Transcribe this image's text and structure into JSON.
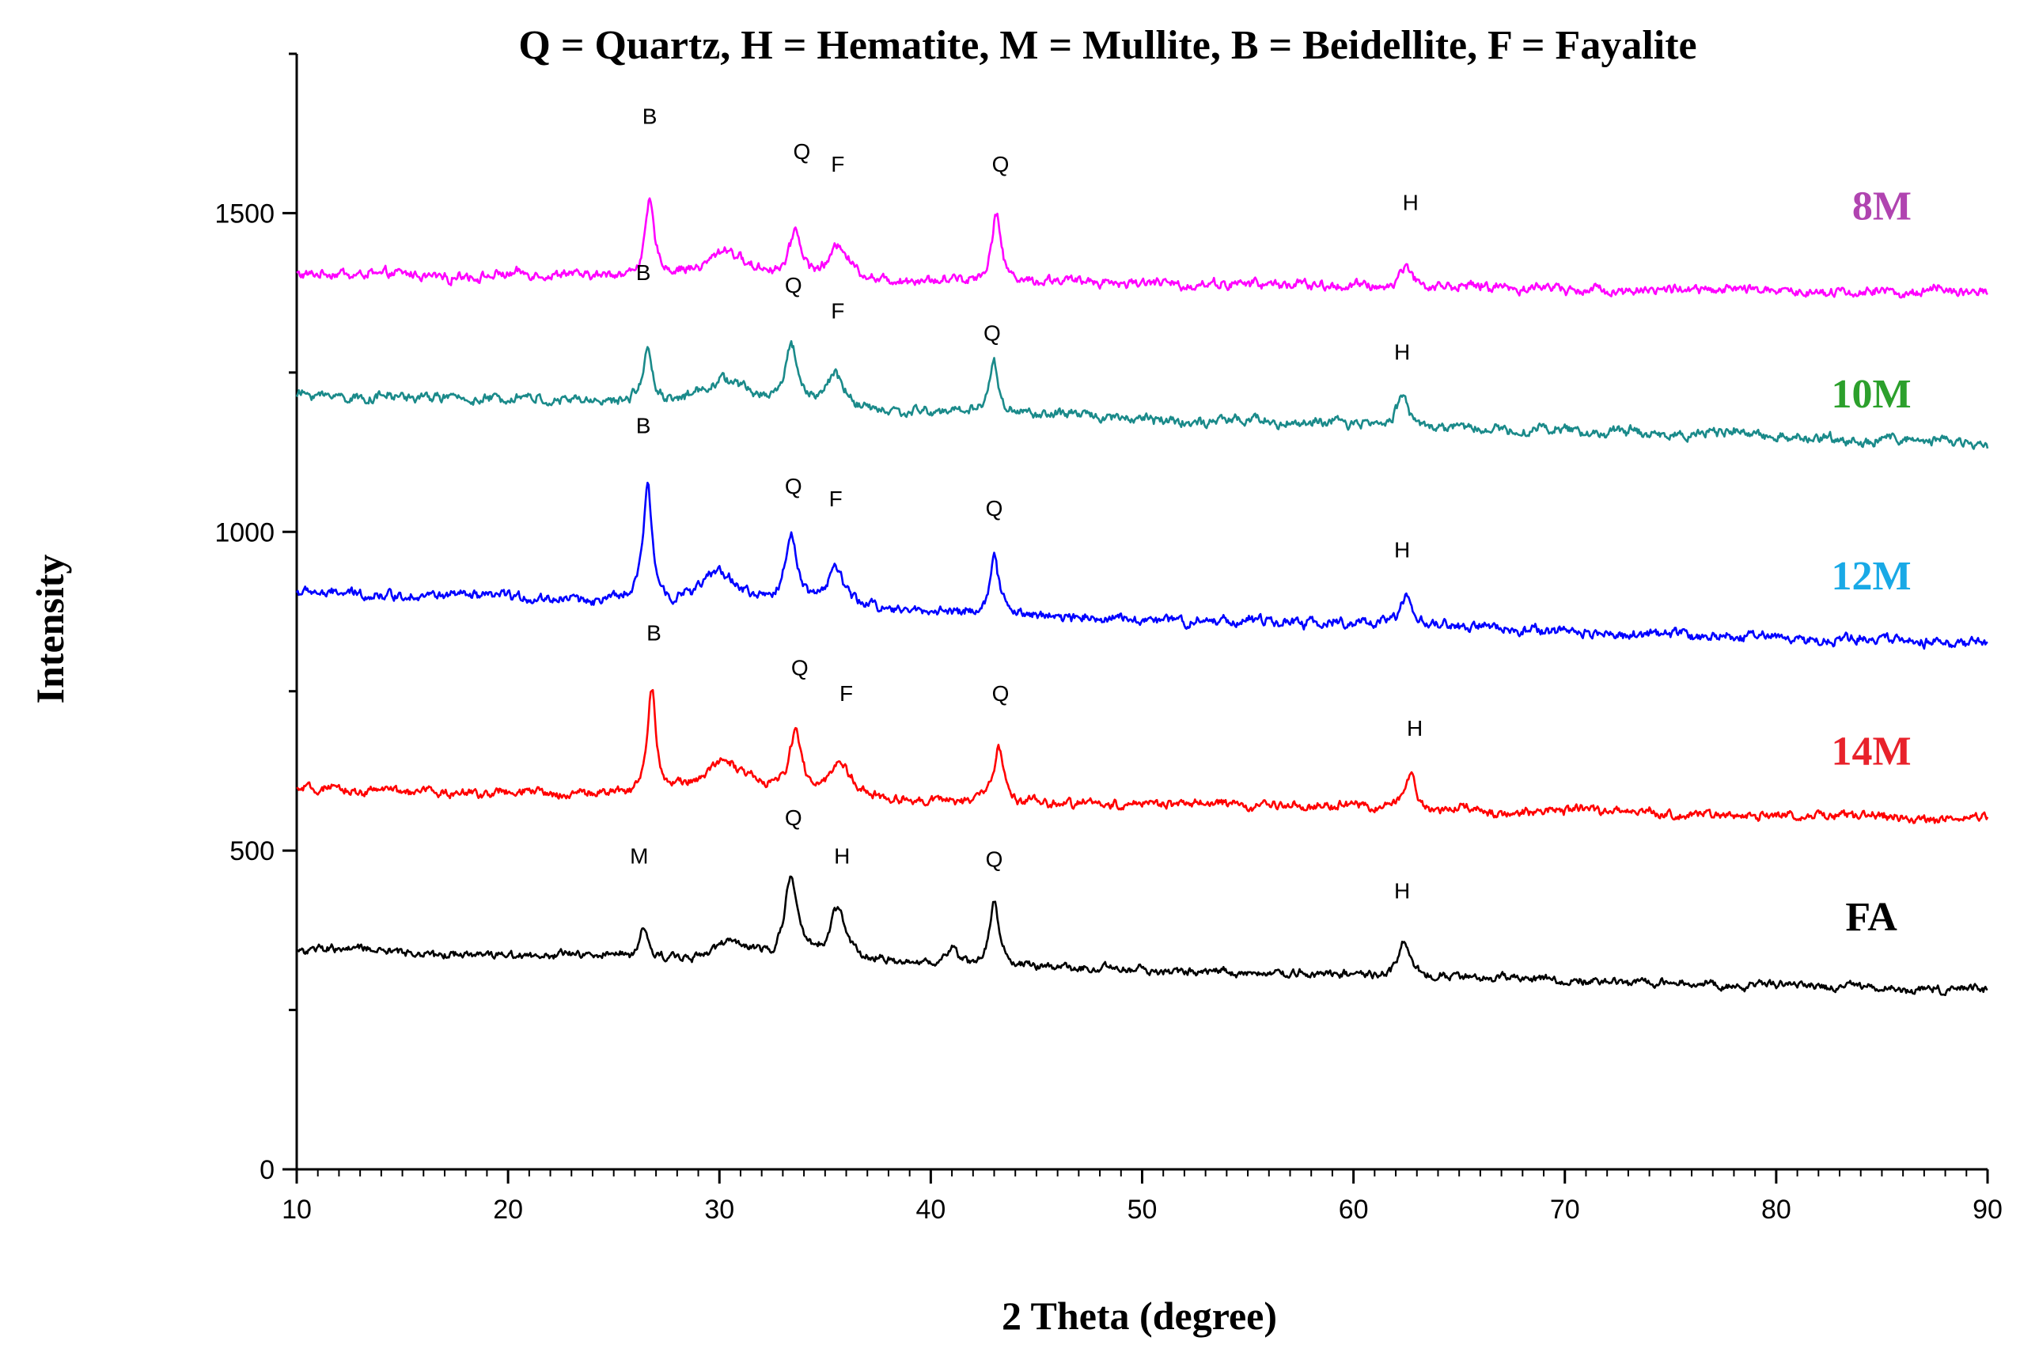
{
  "chart_data": {
    "type": "line",
    "title": "Q = Quartz, H = Hematite, M = Mullite, B = Beidellite, F = Fayalite",
    "xlabel": "2 Theta (degree)",
    "ylabel": "Intensity",
    "xlim": [
      10,
      90
    ],
    "ylim": [
      0,
      1750
    ],
    "x_ticks": [
      10,
      20,
      30,
      40,
      50,
      60,
      70,
      80,
      90
    ],
    "y_ticks": [
      0,
      500,
      1000,
      1500
    ],
    "grid": false,
    "legend": "inline labels at right",
    "series": [
      {
        "name": "8M",
        "color": "#ff00ff",
        "label_color": "#b044b0",
        "baseline_start": 1405,
        "baseline_end": 1375,
        "noise": 11,
        "peaks": [
          {
            "x": 26.7,
            "height": 115,
            "width": 0.25
          },
          {
            "x": 30.3,
            "height": 45,
            "width": 1.0
          },
          {
            "x": 33.6,
            "height": 75,
            "width": 0.35
          },
          {
            "x": 35.7,
            "height": 55,
            "width": 0.5
          },
          {
            "x": 43.1,
            "height": 115,
            "width": 0.25
          },
          {
            "x": 62.5,
            "height": 35,
            "width": 0.3
          }
        ],
        "annotations": [
          {
            "label": "B",
            "x": 26.7,
            "intensity": 1640
          },
          {
            "label": "Q",
            "x": 33.9,
            "intensity": 1585
          },
          {
            "label": "F",
            "x": 35.6,
            "intensity": 1565
          },
          {
            "label": "Q",
            "x": 43.3,
            "intensity": 1565
          },
          {
            "label": "H",
            "x": 62.7,
            "intensity": 1505
          }
        ]
      },
      {
        "name": "10M",
        "color": "#1a8a8a",
        "label_color": "#2ca02c",
        "baseline_start": 1215,
        "baseline_end": 1140,
        "noise": 11,
        "peaks": [
          {
            "x": 26.6,
            "height": 85,
            "width": 0.25
          },
          {
            "x": 30.3,
            "height": 40,
            "width": 1.2
          },
          {
            "x": 33.4,
            "height": 95,
            "width": 0.35
          },
          {
            "x": 35.5,
            "height": 55,
            "width": 0.5
          },
          {
            "x": 43.0,
            "height": 80,
            "width": 0.25
          },
          {
            "x": 62.3,
            "height": 55,
            "width": 0.3
          }
        ],
        "annotations": [
          {
            "label": "B",
            "x": 26.4,
            "intensity": 1395
          },
          {
            "label": "Q",
            "x": 33.5,
            "intensity": 1375
          },
          {
            "label": "F",
            "x": 35.6,
            "intensity": 1335
          },
          {
            "label": "Q",
            "x": 42.9,
            "intensity": 1300
          },
          {
            "label": "H",
            "x": 62.3,
            "intensity": 1270
          }
        ]
      },
      {
        "name": "12M",
        "color": "#0000ff",
        "label_color": "#19a9e6",
        "baseline_start": 905,
        "baseline_end": 825,
        "noise": 11,
        "peaks": [
          {
            "x": 26.6,
            "height": 180,
            "width": 0.25
          },
          {
            "x": 30.0,
            "height": 50,
            "width": 1.0
          },
          {
            "x": 33.4,
            "height": 110,
            "width": 0.35
          },
          {
            "x": 35.5,
            "height": 60,
            "width": 0.5
          },
          {
            "x": 43.0,
            "height": 85,
            "width": 0.25
          },
          {
            "x": 62.5,
            "height": 45,
            "width": 0.3
          }
        ],
        "annotations": [
          {
            "label": "B",
            "x": 26.4,
            "intensity": 1155
          },
          {
            "label": "Q",
            "x": 33.5,
            "intensity": 1060
          },
          {
            "label": "F",
            "x": 35.5,
            "intensity": 1040
          },
          {
            "label": "Q",
            "x": 43.0,
            "intensity": 1025
          },
          {
            "label": "H",
            "x": 62.3,
            "intensity": 960
          }
        ]
      },
      {
        "name": "14M",
        "color": "#ff0000",
        "label_color": "#e8222b",
        "baseline_start": 595,
        "baseline_end": 550,
        "noise": 10,
        "peaks": [
          {
            "x": 26.8,
            "height": 160,
            "width": 0.25
          },
          {
            "x": 30.3,
            "height": 55,
            "width": 1.2
          },
          {
            "x": 33.6,
            "height": 95,
            "width": 0.35
          },
          {
            "x": 35.7,
            "height": 55,
            "width": 0.6
          },
          {
            "x": 43.2,
            "height": 85,
            "width": 0.25
          },
          {
            "x": 62.7,
            "height": 55,
            "width": 0.3
          }
        ],
        "annotations": [
          {
            "label": "B",
            "x": 26.9,
            "intensity": 830
          },
          {
            "label": "Q",
            "x": 33.8,
            "intensity": 775
          },
          {
            "label": "F",
            "x": 36.0,
            "intensity": 735
          },
          {
            "label": "Q",
            "x": 43.3,
            "intensity": 735
          },
          {
            "label": "H",
            "x": 62.9,
            "intensity": 680
          }
        ]
      },
      {
        "name": "FA",
        "color": "#000000",
        "label_color": "#000000",
        "baseline_start": 345,
        "baseline_end": 280,
        "noise": 9,
        "peaks": [
          {
            "x": 26.4,
            "height": 45,
            "width": 0.25
          },
          {
            "x": 30.5,
            "height": 25,
            "width": 1.0
          },
          {
            "x": 33.4,
            "height": 135,
            "width": 0.35
          },
          {
            "x": 35.6,
            "height": 80,
            "width": 0.45
          },
          {
            "x": 41.0,
            "height": 25,
            "width": 0.3
          },
          {
            "x": 43.0,
            "height": 105,
            "width": 0.25
          },
          {
            "x": 62.4,
            "height": 55,
            "width": 0.3
          }
        ],
        "annotations": [
          {
            "label": "M",
            "x": 26.2,
            "intensity": 480
          },
          {
            "label": "Q",
            "x": 33.5,
            "intensity": 540
          },
          {
            "label": "H",
            "x": 35.8,
            "intensity": 480
          },
          {
            "label": "Q",
            "x": 43.0,
            "intensity": 475
          },
          {
            "label": "H",
            "x": 62.3,
            "intensity": 425
          }
        ]
      }
    ],
    "series_labels": [
      {
        "text": "8M",
        "x": 85.0,
        "intensity": 1490,
        "color": "#b044b0"
      },
      {
        "text": "10M",
        "x": 84.5,
        "intensity": 1195,
        "color": "#2ca02c"
      },
      {
        "text": "12M",
        "x": 84.5,
        "intensity": 910,
        "color": "#19a9e6"
      },
      {
        "text": "14M",
        "x": 84.5,
        "intensity": 635,
        "color": "#e8222b"
      },
      {
        "text": "FA",
        "x": 84.5,
        "intensity": 375,
        "color": "#000000"
      }
    ]
  }
}
